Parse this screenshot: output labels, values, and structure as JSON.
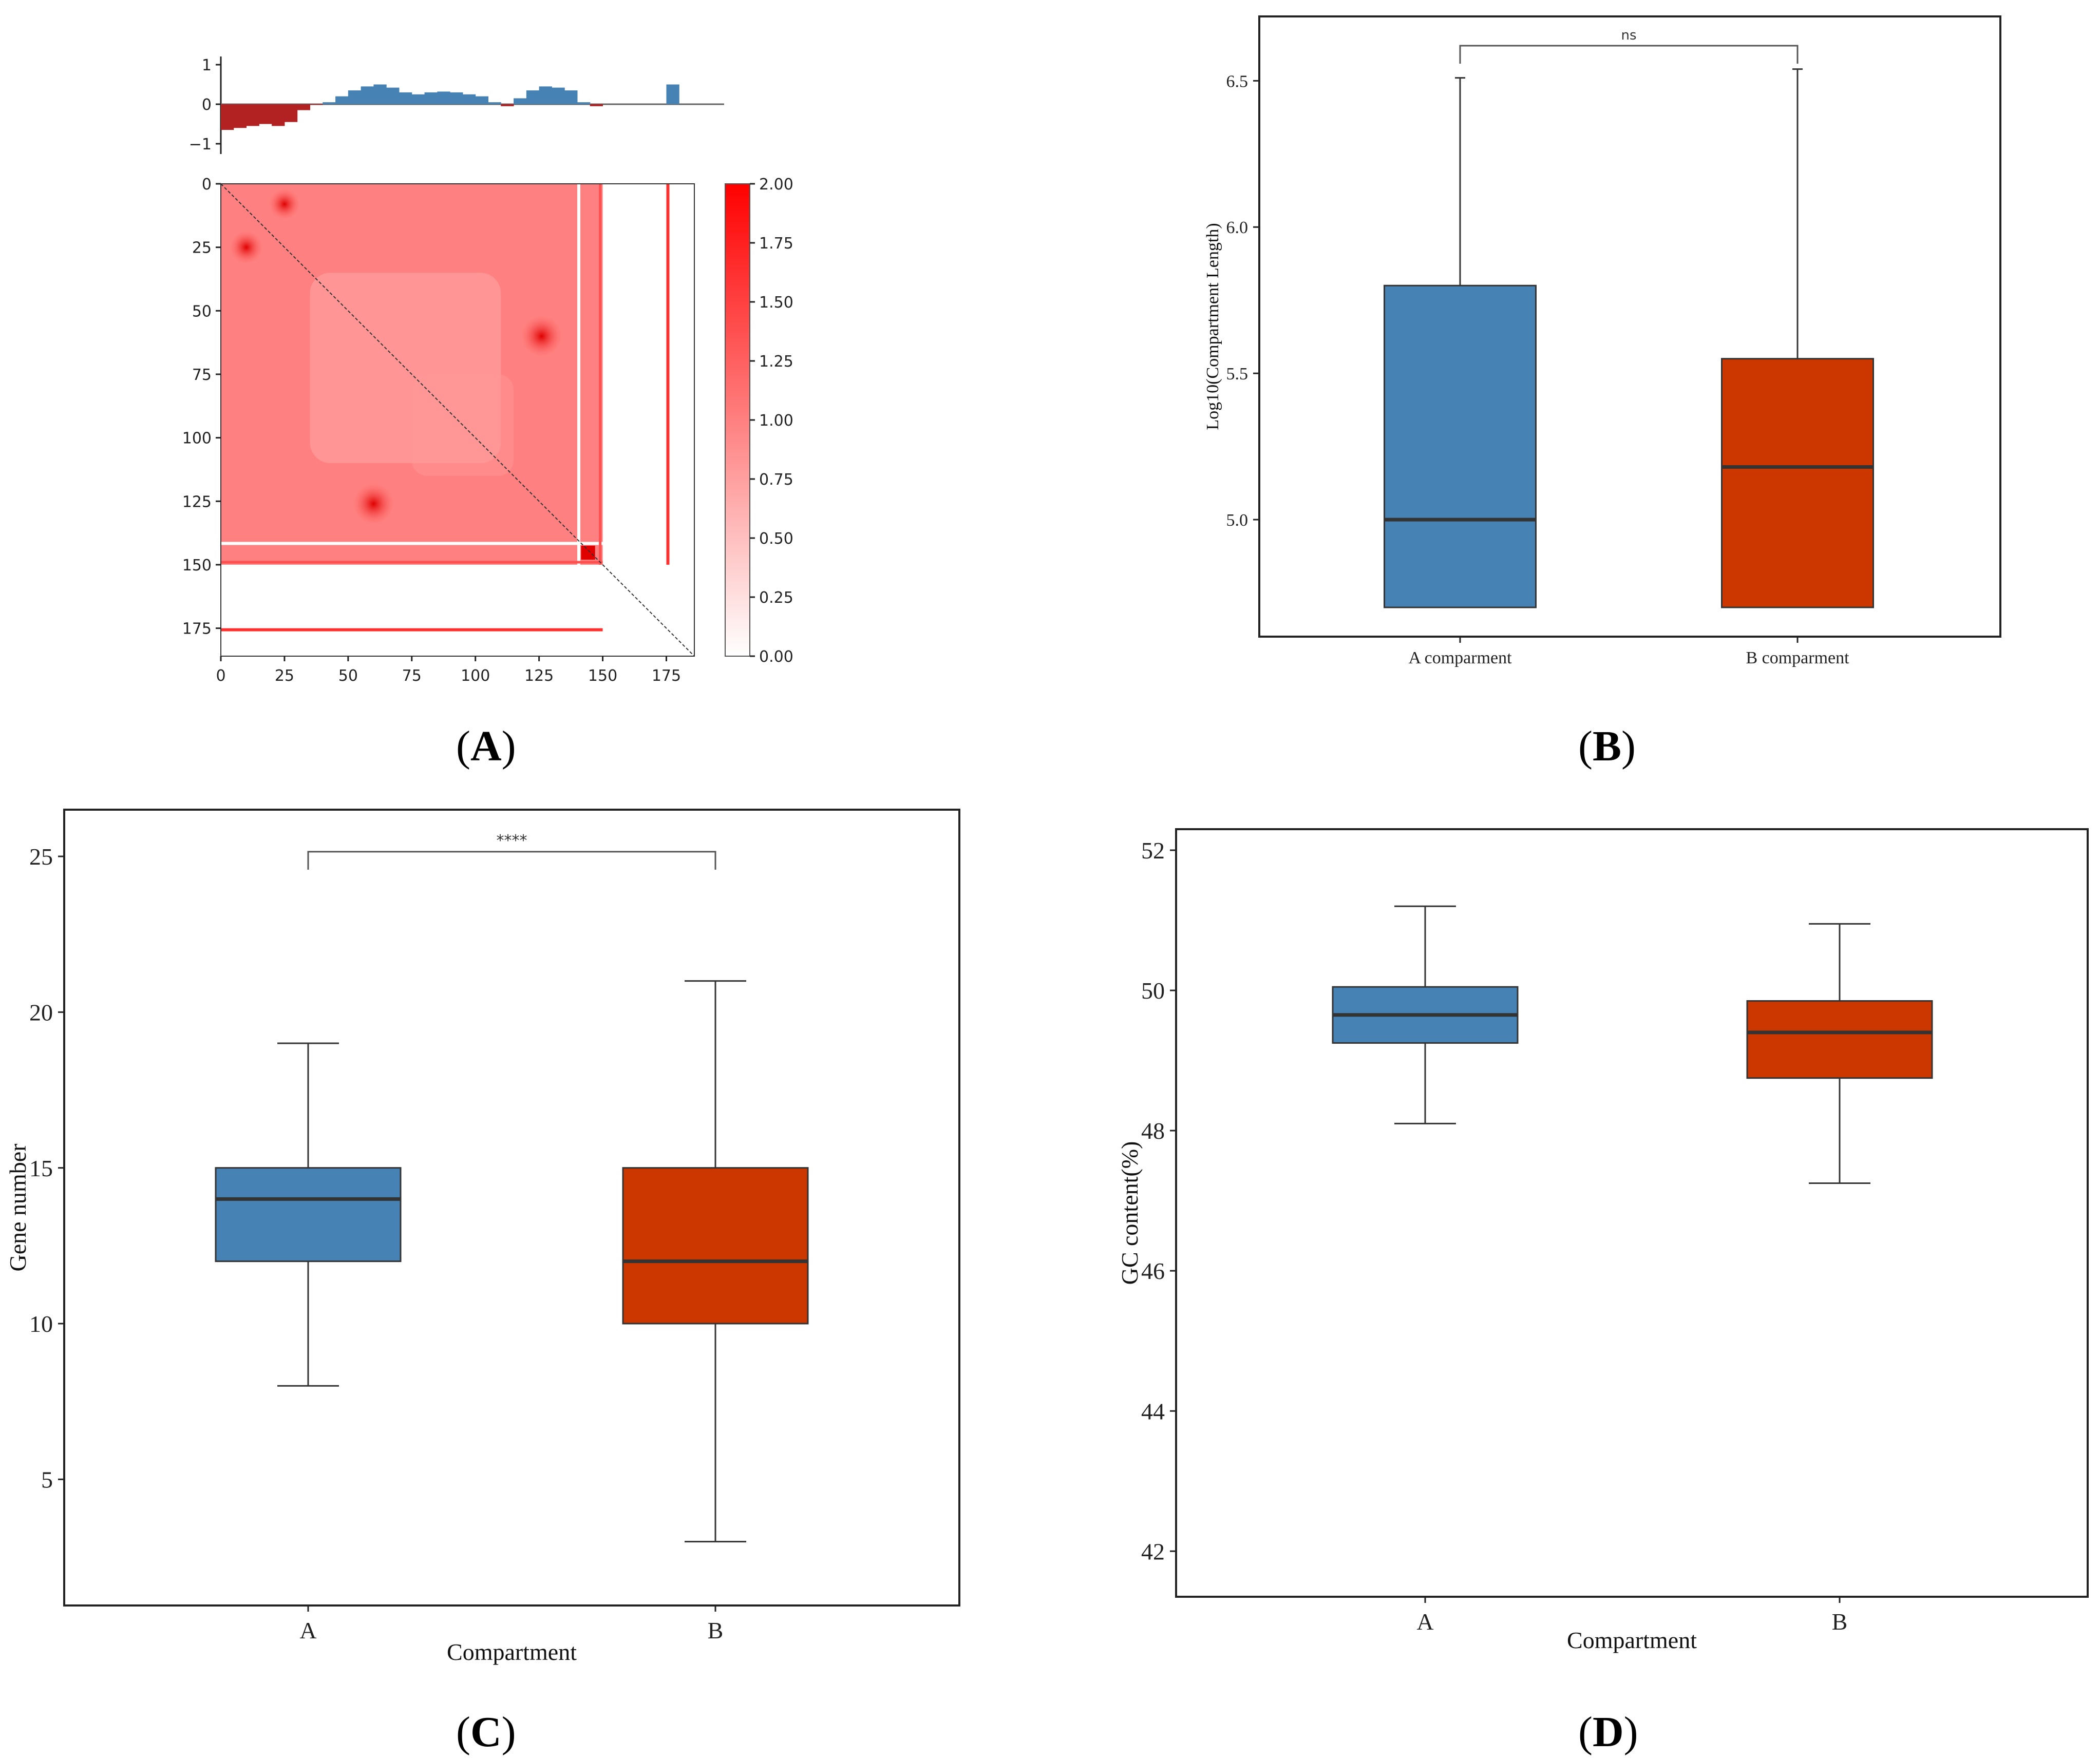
{
  "chart_data": [
    {
      "type": "heatmap",
      "panel_label": "A",
      "title": "",
      "track": {
        "type": "bar",
        "ylim": [
          -1.2,
          1.2
        ],
        "yticks": [
          "1",
          "0",
          "−1"
        ],
        "segments_values": {
          "x": [
            0,
            5,
            10,
            15,
            20,
            25,
            30,
            35,
            40,
            45,
            50,
            55,
            60,
            65,
            70,
            75,
            80,
            85,
            90,
            95,
            100,
            105,
            110,
            115,
            120,
            125,
            130,
            135,
            140,
            145,
            150,
            155,
            160,
            165,
            170,
            175,
            180
          ],
          "y": [
            -0.65,
            -0.6,
            -0.55,
            -0.5,
            -0.55,
            -0.45,
            -0.15,
            -0.02,
            0.05,
            0.2,
            0.35,
            0.45,
            0.5,
            0.42,
            0.3,
            0.25,
            0.3,
            0.32,
            0.3,
            0.25,
            0.2,
            0.05,
            -0.05,
            0.15,
            0.35,
            0.45,
            0.42,
            0.35,
            0.05,
            -0.05,
            0.0,
            0.0,
            0.0,
            0.0,
            0.0,
            0.5,
            0.0
          ]
        },
        "positive_color": "#4682b4",
        "negative_color": "#b22222"
      },
      "matrix": {
        "size": 186,
        "xticks": [
          "0",
          "25",
          "50",
          "75",
          "100",
          "125",
          "150",
          "175"
        ],
        "yticks": [
          "0",
          "25",
          "50",
          "75",
          "100",
          "125",
          "150",
          "175"
        ],
        "base_color": "#ff8080",
        "hotspots": [
          {
            "x": 126,
            "y": 60,
            "value": 2.0
          },
          {
            "x": 60,
            "y": 126,
            "value": 2.0
          },
          {
            "x": 10,
            "y": 25,
            "value": 1.6
          },
          {
            "x": 25,
            "y": 8,
            "value": 1.5
          }
        ]
      },
      "colorbar": {
        "ticks": [
          "2.00",
          "1.75",
          "1.50",
          "1.25",
          "1.00",
          "0.75",
          "0.50",
          "0.25",
          "0.00"
        ],
        "range": [
          0,
          2
        ]
      }
    },
    {
      "type": "box",
      "panel_label": "B",
      "title": "",
      "xlabel": "",
      "ylabel": "Log10(Compartment Length)",
      "ylim": [
        4.6,
        6.72
      ],
      "yticks": [
        "5.0",
        "5.5",
        "6.0",
        "6.5"
      ],
      "ytick_values": [
        5.0,
        5.5,
        6.0,
        6.5
      ],
      "categories": [
        "A comparment",
        "B comparment"
      ],
      "boxes": [
        {
          "min": 4.7,
          "q1": 4.7,
          "median": 5.0,
          "q3": 5.8,
          "max": 6.51,
          "color": "#4682b4"
        },
        {
          "min": 4.7,
          "q1": 4.7,
          "median": 5.18,
          "q3": 5.55,
          "max": 6.54,
          "color": "#cc3700"
        }
      ],
      "significance": {
        "label": "ns",
        "y": 6.62
      }
    },
    {
      "type": "box",
      "panel_label": "C",
      "title": "",
      "xlabel": "Compartment",
      "ylabel": "Gene number",
      "ylim": [
        0.95,
        26.5
      ],
      "yticks": [
        "5",
        "10",
        "15",
        "20",
        "25"
      ],
      "ytick_values": [
        5,
        10,
        15,
        20,
        25
      ],
      "categories": [
        "A",
        "B"
      ],
      "boxes": [
        {
          "min": 8,
          "q1": 12,
          "median": 14,
          "q3": 15,
          "max": 19,
          "color": "#4682b4"
        },
        {
          "min": 3,
          "q1": 10,
          "median": 12,
          "q3": 15,
          "max": 21,
          "color": "#cc3700"
        }
      ],
      "significance": {
        "label": "****",
        "y": 25.15
      }
    },
    {
      "type": "box",
      "panel_label": "D",
      "title": "",
      "xlabel": "Compartment",
      "ylabel": "GC content(%)",
      "ylim": [
        41.35,
        52.3
      ],
      "yticks": [
        "42",
        "44",
        "46",
        "48",
        "50",
        "52"
      ],
      "ytick_values": [
        42,
        44,
        46,
        48,
        50,
        52
      ],
      "categories": [
        "A",
        "B"
      ],
      "boxes": [
        {
          "min": 48.1,
          "q1": 49.25,
          "median": 49.65,
          "q3": 50.05,
          "max": 51.2,
          "color": "#4682b4"
        },
        {
          "min": 47.25,
          "q1": 48.75,
          "median": 49.4,
          "q3": 49.85,
          "max": 50.95,
          "color": "#cc3700"
        }
      ]
    }
  ]
}
